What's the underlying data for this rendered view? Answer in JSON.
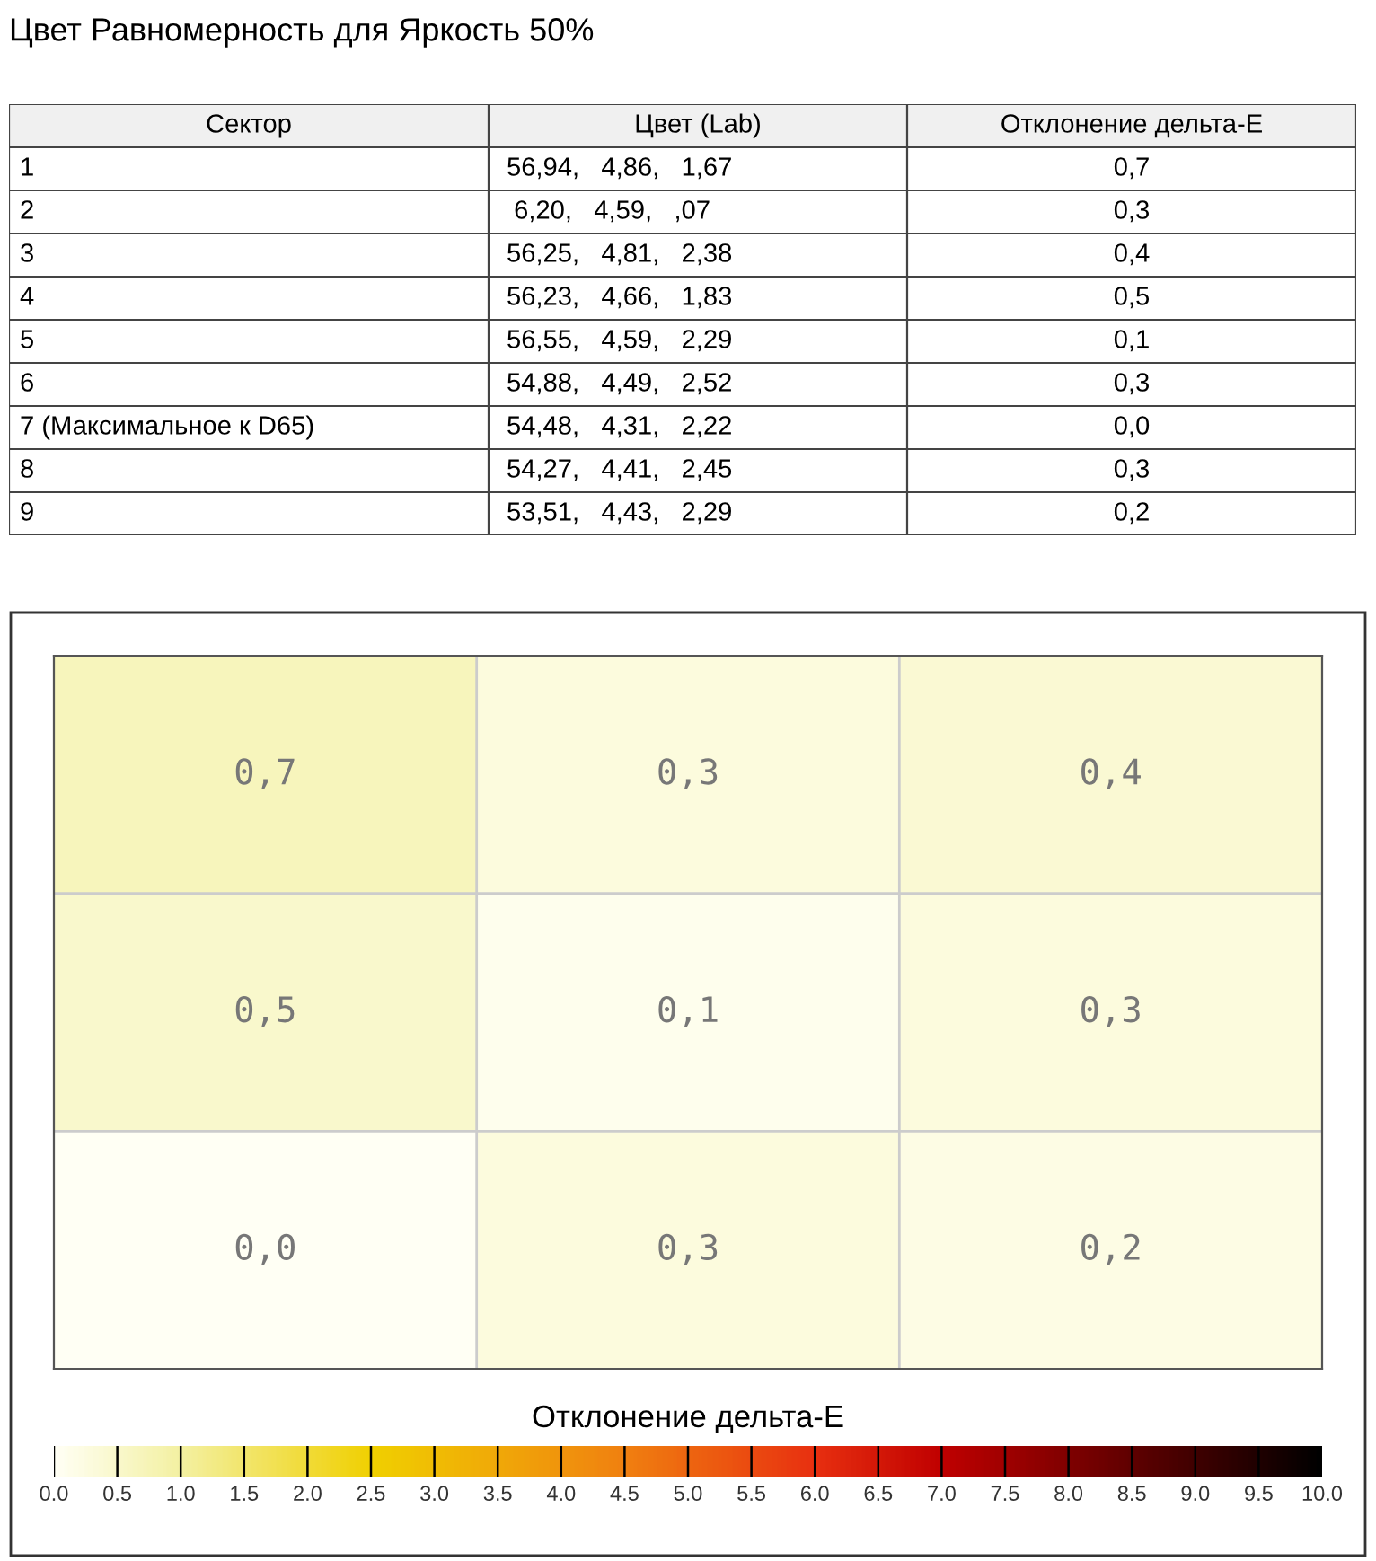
{
  "chart_data": [
    {
      "type": "other",
      "title": "Цвет Равномерность для Яркость 50%",
      "annotations": [
        "Сектор",
        "Цвет (Lab)",
        "Отклонение дельта-E",
        "1",
        "56,94,   4,86,   1,67",
        "0,7",
        "2",
        " 6,20,   4,59,   ,07",
        "0,3",
        "3",
        "56,25,   4,81,   2,38",
        "0,4",
        "4",
        "56,23,   4,66,   1,83",
        "0,5",
        "5",
        "56,55,   4,59,   2,29",
        "0,1",
        "6",
        "54,88,   4,49,   2,52",
        "0,3",
        "7 (Максимальное к D65)",
        "54,48,   4,31,   2,22",
        "0,0",
        "8",
        "54,27,   4,41,   2,45",
        "0,3",
        "9",
        "53,51,   4,43,   2,29",
        "0,2"
      ]
    },
    {
      "type": "heatmap",
      "clabel": "Отклонение дельта-E",
      "categories": [
        null,
        null,
        null
      ],
      "y_categories": [
        null,
        null,
        null
      ],
      "cells": [
        [
          0.7,
          0.3,
          0.4
        ],
        [
          0.5,
          0.1,
          0.3
        ],
        [
          0.0,
          0.3,
          0.2
        ]
      ],
      "cell_labels": [
        [
          "0,7",
          "0,3",
          "0,4"
        ],
        [
          "0,5",
          "0,1",
          "0,3"
        ],
        [
          "0,0",
          "0,3",
          "0,2"
        ]
      ],
      "clim": [
        0,
        10
      ],
      "cticks": [
        {
          "value": 0,
          "label": "0.0"
        },
        {
          "value": 0.5,
          "label": "0.5"
        },
        {
          "value": 1,
          "label": "1.0"
        },
        {
          "value": 1.5,
          "label": "1.5"
        },
        {
          "value": 2,
          "label": "2.0"
        },
        {
          "value": 2.5,
          "label": "2.5"
        },
        {
          "value": 3,
          "label": "3.0"
        },
        {
          "value": 3.5,
          "label": "3.5"
        },
        {
          "value": 4,
          "label": "4.0"
        },
        {
          "value": 4.5,
          "label": "4.5"
        },
        {
          "value": 5,
          "label": "5.0"
        },
        {
          "value": 5.5,
          "label": "5.5"
        },
        {
          "value": 6,
          "label": "6.0"
        },
        {
          "value": 6.5,
          "label": "6.5"
        },
        {
          "value": 7,
          "label": "7.0"
        },
        {
          "value": 7.5,
          "label": "7.5"
        },
        {
          "value": 8,
          "label": "8.0"
        },
        {
          "value": 8.5,
          "label": "8.5"
        },
        {
          "value": 9,
          "label": "9.0"
        },
        {
          "value": 9.5,
          "label": "9.5"
        },
        {
          "value": 10,
          "label": "10.0"
        }
      ],
      "grid": true
    }
  ]
}
